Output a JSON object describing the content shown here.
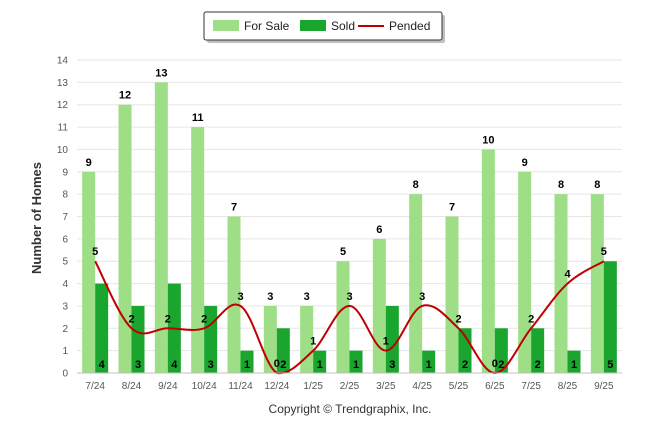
{
  "chart_data": {
    "type": "bar",
    "title": "",
    "xlabel": "",
    "ylabel": "Number of Homes",
    "ylim": [
      0,
      14
    ],
    "yticks": [
      0,
      1,
      2,
      3,
      4,
      5,
      6,
      7,
      8,
      9,
      10,
      11,
      12,
      13,
      14
    ],
    "categories": [
      "7/24",
      "8/24",
      "9/24",
      "10/24",
      "11/24",
      "12/24",
      "1/25",
      "2/25",
      "3/25",
      "4/25",
      "5/25",
      "6/25",
      "7/25",
      "8/25",
      "9/25"
    ],
    "series": [
      {
        "name": "For Sale",
        "type": "bar",
        "color": "#9ede86",
        "values": [
          9,
          12,
          13,
          11,
          7,
          3,
          3,
          5,
          6,
          8,
          7,
          10,
          9,
          8,
          8
        ]
      },
      {
        "name": "Sold",
        "type": "bar",
        "color": "#1aa62e",
        "values": [
          4,
          3,
          4,
          3,
          1,
          2,
          1,
          1,
          3,
          1,
          2,
          2,
          2,
          1,
          5
        ]
      },
      {
        "name": "Pended",
        "type": "line",
        "color": "#c00000",
        "values": [
          5,
          2,
          2,
          2,
          3,
          0,
          1,
          3,
          1,
          3,
          2,
          0,
          2,
          4,
          5
        ]
      }
    ],
    "legend_position": "top-center",
    "credit": "Copyright © Trendgraphix, Inc."
  }
}
